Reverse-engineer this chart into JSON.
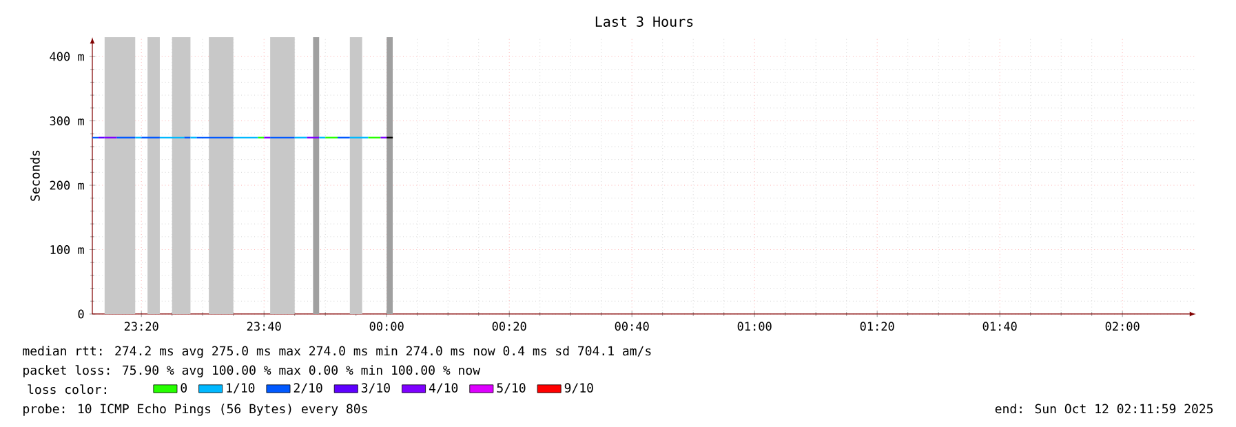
{
  "chart_data": {
    "type": "line",
    "title": "Last 3 Hours",
    "ylabel": "Seconds",
    "xlim": [
      "2025-10-11T23:12",
      "2025-10-12T02:12"
    ],
    "xticks": [
      {
        "value": "2025-10-11T23:20",
        "label": "23:20"
      },
      {
        "value": "2025-10-11T23:40",
        "label": "23:40"
      },
      {
        "value": "2025-10-12T00:00",
        "label": "00:00"
      },
      {
        "value": "2025-10-12T00:20",
        "label": "00:20"
      },
      {
        "value": "2025-10-12T00:40",
        "label": "00:40"
      },
      {
        "value": "2025-10-12T01:00",
        "label": "01:00"
      },
      {
        "value": "2025-10-12T01:20",
        "label": "01:20"
      },
      {
        "value": "2025-10-12T01:40",
        "label": "01:40"
      },
      {
        "value": "2025-10-12T02:00",
        "label": "02:00"
      }
    ],
    "ylim": [
      0,
      430
    ],
    "yticks": [
      0,
      {
        "value": 100,
        "label": "100 m"
      },
      {
        "value": 200,
        "label": "200 m"
      },
      {
        "value": 300,
        "label": "300 m"
      },
      {
        "value": 400,
        "label": "400 m"
      }
    ],
    "grid": true,
    "legend": "bottom",
    "legend_title": "loss color:",
    "bands": [
      {
        "axis": "x",
        "from": "2025-10-11T23:14",
        "to": "2025-10-11T23:19",
        "color": "#c8c8c8"
      },
      {
        "axis": "x",
        "from": "2025-10-11T23:21",
        "to": "2025-10-11T23:23",
        "color": "#c8c8c8"
      },
      {
        "axis": "x",
        "from": "2025-10-11T23:25",
        "to": "2025-10-11T23:28",
        "color": "#c8c8c8"
      },
      {
        "axis": "x",
        "from": "2025-10-11T23:31",
        "to": "2025-10-11T23:35",
        "color": "#c8c8c8"
      },
      {
        "axis": "x",
        "from": "2025-10-11T23:41",
        "to": "2025-10-11T23:45",
        "color": "#c8c8c8"
      },
      {
        "axis": "x",
        "from": "2025-10-11T23:48",
        "to": "2025-10-11T23:49",
        "color": "#a0a0a0"
      },
      {
        "axis": "x",
        "from": "2025-10-11T23:54",
        "to": "2025-10-11T23:56",
        "color": "#c8c8c8"
      },
      {
        "axis": "x",
        "from": "2025-10-12T00:00",
        "to": "2025-10-12T00:01",
        "color": "#a0a0a0"
      }
    ],
    "series": [
      {
        "name": "0",
        "color": "#26ff00",
        "x": [
          "2025-10-11T23:39",
          "2025-10-11T23:40"
        ],
        "values": [
          274,
          274
        ]
      },
      {
        "name": "1/10",
        "color": "#00b8ff",
        "x": [
          "2025-10-11T23:19",
          "2025-10-11T23:20"
        ],
        "values": [
          274,
          274
        ]
      },
      {
        "name": "2/10",
        "color": "#0059ff",
        "x": [
          "2025-10-11T23:12",
          "2025-10-11T23:13"
        ],
        "values": [
          274,
          274
        ]
      },
      {
        "name": "3/10",
        "color": "#5e00ff",
        "x": [
          "2025-10-11T23:13",
          "2025-10-11T23:14"
        ],
        "values": [
          274,
          274
        ]
      },
      {
        "name": "4/10",
        "color": "#7e00ff",
        "x": [
          "2025-10-11T23:14",
          "2025-10-11T23:16"
        ],
        "values": [
          274,
          274
        ]
      },
      {
        "name": "5/10",
        "color": "#dd00ff"
      },
      {
        "name": "9/10",
        "color": "#ff0000"
      },
      {
        "color": "#0059ff",
        "x": [
          "2025-10-11T23:16",
          "2025-10-11T23:19"
        ],
        "values": [
          274,
          274
        ]
      },
      {
        "color": "#0059ff",
        "x": [
          "2025-10-11T23:20",
          "2025-10-11T23:23"
        ],
        "values": [
          274,
          274
        ]
      },
      {
        "color": "#00b8ff",
        "x": [
          "2025-10-11T23:23",
          "2025-10-11T23:27"
        ],
        "values": [
          274,
          274
        ]
      },
      {
        "color": "#0059ff",
        "x": [
          "2025-10-11T23:27",
          "2025-10-11T23:28"
        ],
        "values": [
          274,
          274
        ]
      },
      {
        "color": "#00b8ff",
        "x": [
          "2025-10-11T23:28",
          "2025-10-11T23:29"
        ],
        "values": [
          274,
          274
        ]
      },
      {
        "color": "#0059ff",
        "x": [
          "2025-10-11T23:29",
          "2025-10-11T23:35"
        ],
        "values": [
          274,
          274
        ]
      },
      {
        "color": "#00b8ff",
        "x": [
          "2025-10-11T23:35",
          "2025-10-11T23:39"
        ],
        "values": [
          274,
          274
        ]
      },
      {
        "color": "#7e00ff",
        "x": [
          "2025-10-11T23:40",
          "2025-10-11T23:41"
        ],
        "values": [
          274,
          274
        ]
      },
      {
        "color": "#0059ff",
        "x": [
          "2025-10-11T23:41",
          "2025-10-11T23:45"
        ],
        "values": [
          274,
          274
        ]
      },
      {
        "color": "#00b8ff",
        "x": [
          "2025-10-11T23:45",
          "2025-10-11T23:47"
        ],
        "values": [
          274,
          274
        ]
      },
      {
        "color": "#7e00ff",
        "x": [
          "2025-10-11T23:47",
          "2025-10-11T23:49"
        ],
        "values": [
          274,
          274
        ]
      },
      {
        "color": "#00b8ff",
        "x": [
          "2025-10-11T23:49",
          "2025-10-11T23:50"
        ],
        "values": [
          274,
          274
        ]
      },
      {
        "color": "#26ff00",
        "x": [
          "2025-10-11T23:50",
          "2025-10-11T23:52"
        ],
        "values": [
          274,
          274
        ]
      },
      {
        "color": "#0059ff",
        "x": [
          "2025-10-11T23:52",
          "2025-10-11T23:54"
        ],
        "values": [
          274,
          274
        ]
      },
      {
        "color": "#00b8ff",
        "x": [
          "2025-10-11T23:54",
          "2025-10-11T23:57"
        ],
        "values": [
          274,
          274
        ]
      },
      {
        "color": "#26ff00",
        "x": [
          "2025-10-11T23:57",
          "2025-10-11T23:59"
        ],
        "values": [
          274,
          274
        ]
      },
      {
        "color": "#7e00ff",
        "x": [
          "2025-10-11T23:59",
          "2025-10-12T00:00"
        ],
        "values": [
          274,
          274
        ]
      },
      {
        "color": "#000000",
        "x": [
          "2025-10-12T00:00",
          "2025-10-12T00:01"
        ],
        "values": [
          274,
          274
        ]
      }
    ],
    "annotations": [
      "median rtt: 274.2 ms avg 275.0 ms max 274.0 ms min 274.0 ms now 0.4 ms sd 704.1 am/s",
      "packet loss: 75.90 % avg 100.00 % max 0.00 % min 100.00 % now",
      "probe: 10 ICMP Echo Pings (56 Bytes) every 80s",
      "end: Sun Oct 12 02:11:59 2025"
    ]
  }
}
